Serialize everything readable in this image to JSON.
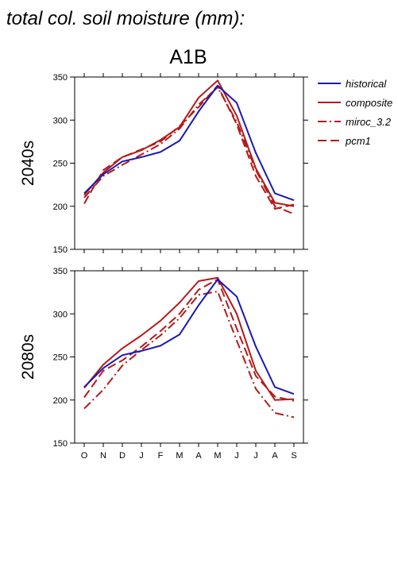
{
  "figure": {
    "title": "total col. soil moisture (mm):",
    "scenario": "A1B"
  },
  "legend": [
    {
      "key": "historical",
      "label": "historical",
      "color": "#1a1ab4",
      "dash": "solid"
    },
    {
      "key": "composite",
      "label": "composite",
      "color": "#b41a1a",
      "dash": "solid"
    },
    {
      "key": "miroc_3.2",
      "label": "miroc_3.2",
      "color": "#b41a1a",
      "dash": "dashdot"
    },
    {
      "key": "pcm1",
      "label": "pcm1",
      "color": "#b41a1a",
      "dash": "dashed"
    }
  ],
  "chart_data": [
    {
      "type": "line",
      "panel_label": "2040s",
      "categories": [
        "O",
        "N",
        "D",
        "J",
        "F",
        "M",
        "A",
        "M",
        "J",
        "J",
        "A",
        "S"
      ],
      "ylim": [
        150,
        350
      ],
      "yticks": [
        150,
        200,
        250,
        300,
        350
      ],
      "grid": false,
      "legend_position": "right",
      "series": [
        {
          "name": "historical",
          "values": [
            215,
            237,
            252,
            257,
            263,
            276,
            310,
            340,
            320,
            262,
            215,
            207
          ]
        },
        {
          "name": "composite",
          "values": [
            213,
            239,
            257,
            265,
            277,
            292,
            326,
            346,
            305,
            244,
            204,
            200
          ]
        },
        {
          "name": "miroc_3.2",
          "values": [
            210,
            235,
            248,
            260,
            272,
            290,
            318,
            338,
            298,
            242,
            200,
            191
          ]
        },
        {
          "name": "pcm1",
          "values": [
            203,
            242,
            257,
            266,
            275,
            293,
            315,
            340,
            295,
            235,
            197,
            202
          ]
        }
      ]
    },
    {
      "type": "line",
      "panel_label": "2080s",
      "categories": [
        "O",
        "N",
        "D",
        "J",
        "F",
        "M",
        "A",
        "M",
        "J",
        "J",
        "A",
        "S"
      ],
      "ylim": [
        150,
        350
      ],
      "yticks": [
        150,
        200,
        250,
        300,
        350
      ],
      "grid": false,
      "legend_position": "right",
      "series": [
        {
          "name": "historical",
          "values": [
            215,
            237,
            252,
            257,
            263,
            276,
            310,
            340,
            320,
            262,
            215,
            207
          ]
        },
        {
          "name": "composite",
          "values": [
            214,
            241,
            260,
            275,
            292,
            313,
            338,
            342,
            300,
            234,
            200,
            201
          ]
        },
        {
          "name": "miroc_3.2",
          "values": [
            190,
            212,
            240,
            258,
            275,
            295,
            322,
            326,
            269,
            213,
            185,
            180
          ]
        },
        {
          "name": "pcm1",
          "values": [
            203,
            234,
            246,
            262,
            280,
            300,
            328,
            340,
            283,
            228,
            204,
            199
          ]
        }
      ]
    }
  ]
}
